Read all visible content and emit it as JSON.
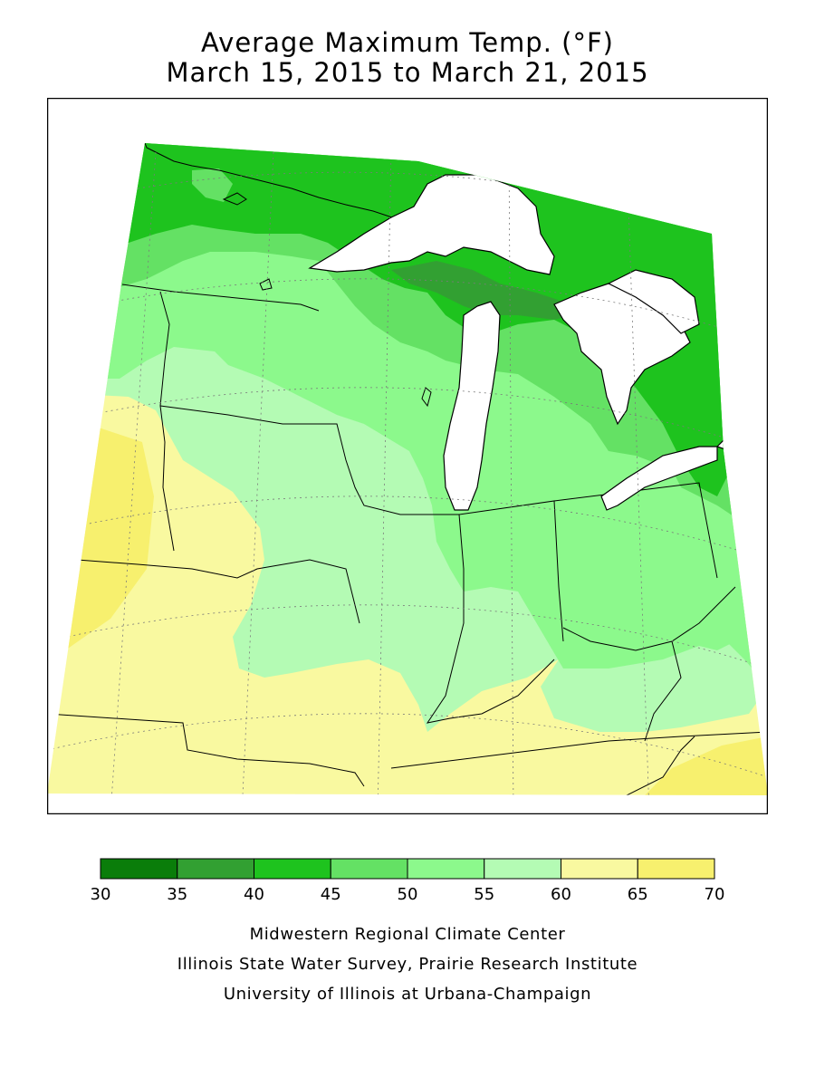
{
  "header": {
    "title": "Average Maximum Temp. (°F)",
    "subtitle": "March 15, 2015 to March 21, 2015"
  },
  "legend": {
    "ticks": [
      "30",
      "35",
      "40",
      "45",
      "50",
      "55",
      "60",
      "65",
      "70"
    ],
    "colors": [
      "#0a7d0a",
      "#32a032",
      "#1ec31e",
      "#64e164",
      "#8cf98c",
      "#b4fbb4",
      "#f9f9a0",
      "#f7f06e"
    ]
  },
  "map": {
    "region": "Midwest US",
    "colors": {
      "35-40": "#32a032",
      "40-45": "#1ec31e",
      "45-50": "#64e164",
      "50-55": "#8cf98c",
      "55-60": "#b4fbb4",
      "60-65": "#f9f9a0",
      "65-70": "#f7f06e",
      "water": "#ffffff",
      "border": "#000000"
    }
  },
  "credits": {
    "line1": "Midwestern Regional Climate Center",
    "line2": "Illinois State Water Survey, Prairie Research Institute",
    "line3": "University of Illinois at Urbana-Champaign"
  }
}
